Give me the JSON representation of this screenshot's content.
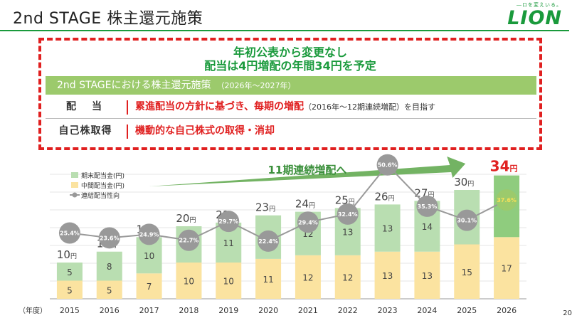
{
  "header": {
    "title": "2nd STAGE 株主還元施策",
    "logo_tagline": "―ロを変えいる。",
    "logo_word": "LION"
  },
  "policy": {
    "headline_1": "年初公表から変更なし",
    "headline_2": "配当は4円増配の年間34円を予定",
    "table_title": "2nd STAGEにおける株主還元施策",
    "table_period": "（2026年～2027年）",
    "rows": [
      {
        "label": "配　当",
        "text": "累進配当の方針に基づき、毎期の増配",
        "sub": "（2016年～12期連続増配）を目指す"
      },
      {
        "label": "自己株取得",
        "text": "機動的な自己株式の取得・消却",
        "sub": ""
      }
    ]
  },
  "chart_data": {
    "type": "bar",
    "categories": [
      "2015",
      "2016",
      "2017",
      "2018",
      "2019",
      "2020",
      "2021",
      "2022",
      "2023",
      "2024",
      "2025",
      "2026"
    ],
    "x_unit_label": "（年度）",
    "series": [
      {
        "name": "中間配当金(円)",
        "values": [
          5,
          5,
          7,
          10,
          10,
          11,
          12,
          12,
          13,
          13,
          15,
          17
        ],
        "color": "#fbe3a0"
      },
      {
        "name": "期末配当金(円)",
        "values": [
          5,
          8,
          10,
          10,
          11,
          12,
          12,
          13,
          13,
          14,
          15,
          17
        ],
        "color": "#b9deb1"
      },
      {
        "name": "連結配当性向",
        "values": [
          25.4,
          23.6,
          24.9,
          22.7,
          29.7,
          22.4,
          29.4,
          32.4,
          50.6,
          35.3,
          30.1,
          37.6
        ],
        "labels": [
          "25.4%",
          "23.6%",
          "24.9%",
          "22.7%",
          "29.7%",
          "22.4%",
          "29.4%",
          "32.4%",
          "50.6%",
          "35.3%",
          "30.1%",
          "37.6%"
        ],
        "color": "#999999"
      }
    ],
    "totals": [
      10,
      13,
      17,
      20,
      21,
      23,
      24,
      25,
      26,
      27,
      30,
      34
    ],
    "total_unit": "円",
    "forecast_color": "#8fcc7e",
    "forecast_top_color": "#5aa648",
    "arrow_label": "11期連続増配へ",
    "highlight_color": "#e02020"
  },
  "page_number": "20"
}
